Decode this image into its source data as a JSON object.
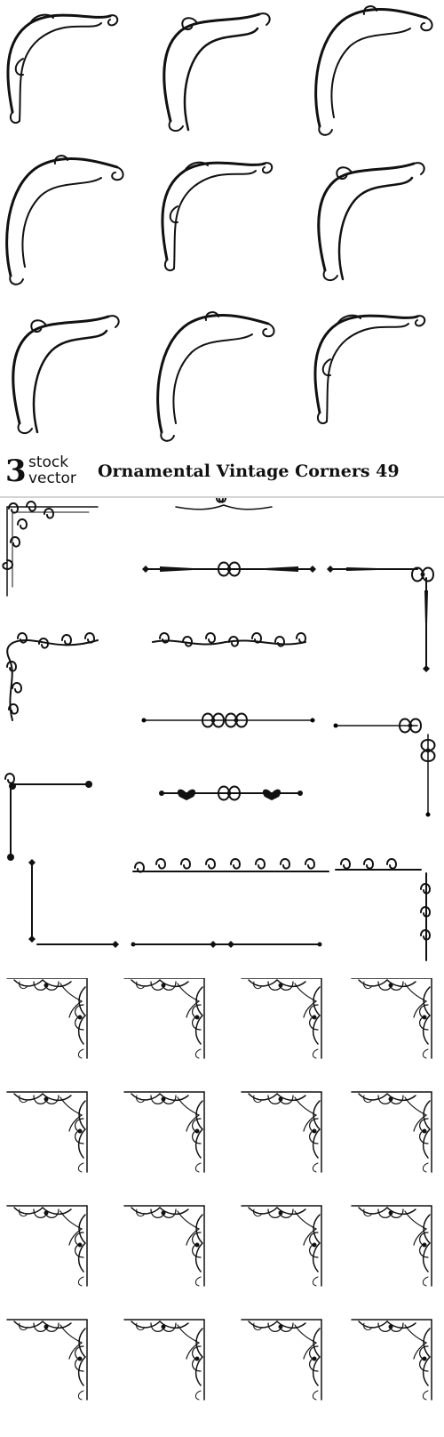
{
  "banner": {
    "logo_number": "3",
    "logo_word_1": "stock",
    "logo_word_2": "vector",
    "title": "Ornamental Vintage Corners 49"
  },
  "colors": {
    "ink": "#111111",
    "background": "#ffffff",
    "divider": "#d4d4d4"
  }
}
